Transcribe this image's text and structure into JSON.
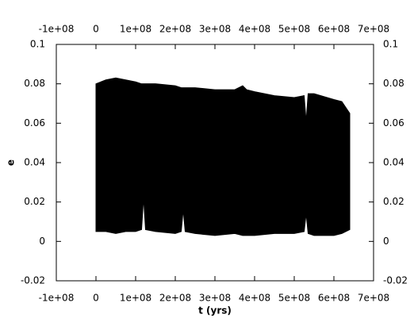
{
  "chart_data": {
    "type": "range-area",
    "xlabel": "t (yrs)",
    "ylabel": "e",
    "color": "#000000",
    "x": [
      0,
      25000000,
      50000000,
      75000000,
      100000000,
      115000000,
      120000000,
      125000000,
      150000000,
      200000000,
      215000000,
      220000000,
      225000000,
      250000000,
      300000000,
      350000000,
      370000000,
      380000000,
      400000000,
      450000000,
      500000000,
      525000000,
      530000000,
      535000000,
      550000000,
      600000000,
      620000000,
      640000000
    ],
    "high": [
      0.08,
      0.082,
      0.083,
      0.082,
      0.081,
      0.08,
      0.08,
      0.08,
      0.08,
      0.079,
      0.078,
      0.078,
      0.078,
      0.078,
      0.077,
      0.077,
      0.079,
      0.077,
      0.076,
      0.074,
      0.073,
      0.074,
      0.061,
      0.075,
      0.075,
      0.072,
      0.071,
      0.065
    ],
    "low": [
      0.005,
      0.005,
      0.004,
      0.005,
      0.005,
      0.006,
      0.022,
      0.006,
      0.005,
      0.004,
      0.005,
      0.016,
      0.005,
      0.004,
      0.003,
      0.004,
      0.003,
      0.003,
      0.003,
      0.004,
      0.004,
      0.005,
      0.014,
      0.004,
      0.003,
      0.003,
      0.004,
      0.006
    ],
    "xlim": [
      -100000000,
      700000000
    ],
    "xticks": [
      {
        "value": -100000000,
        "label": "-1e+08"
      },
      0,
      {
        "value": 100000000,
        "label": "1e+08"
      },
      {
        "value": 200000000,
        "label": "2e+08"
      },
      {
        "value": 300000000,
        "label": "3e+08"
      },
      {
        "value": 400000000,
        "label": "4e+08"
      },
      {
        "value": 500000000,
        "label": "5e+08"
      },
      {
        "value": 600000000,
        "label": "6e+08"
      },
      {
        "value": 700000000,
        "label": "7e+08"
      }
    ],
    "ylim": [
      -0.02,
      0.1
    ],
    "yticks": [
      -0.02,
      0,
      0.02,
      0.04,
      0.06,
      0.08,
      0.1
    ]
  }
}
